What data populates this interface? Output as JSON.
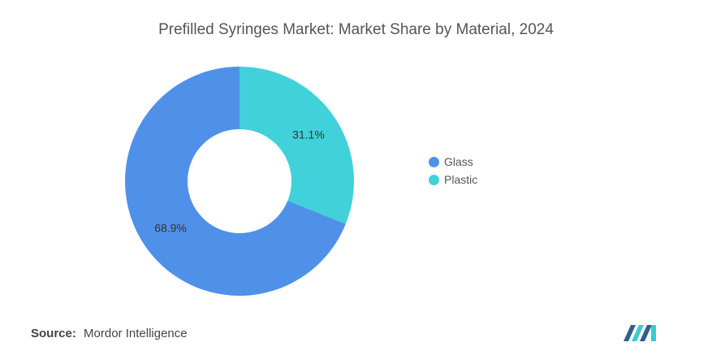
{
  "chart_data": {
    "type": "pie",
    "title": "Prefilled Syringes Market: Market Share by Material, 2024",
    "slices": [
      {
        "name": "Glass",
        "value": 68.9,
        "label": "68.9%",
        "color": "#4f91e8"
      },
      {
        "name": "Plastic",
        "value": 31.1,
        "label": "31.1%",
        "color": "#40d1db"
      }
    ],
    "donut": true,
    "legend_position": "right",
    "start": "top, clockwise, Plastic first"
  },
  "source": {
    "label": "Source:",
    "text": "Mordor Intelligence"
  },
  "logo": {
    "icon": "mordor-intelligence-logo-icon",
    "colors": [
      "#2f5f8f",
      "#40c9c9"
    ]
  }
}
